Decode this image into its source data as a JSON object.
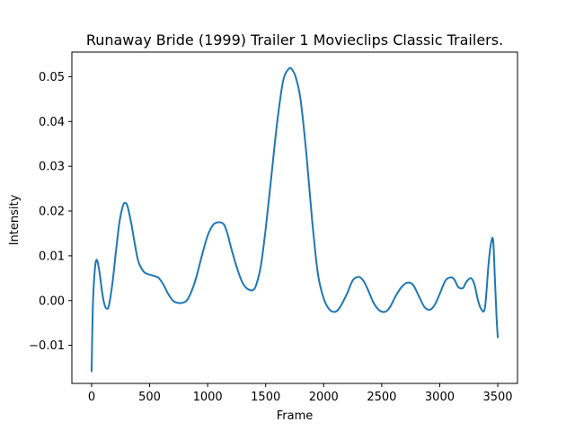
{
  "chart_data": {
    "type": "line",
    "title": "Runaway Bride (1999) Trailer 1  Movieclips Classic Trailers.",
    "xlabel": "Frame",
    "ylabel": "Intensity",
    "xlim": [
      -170,
      3670
    ],
    "ylim": [
      -0.0185,
      0.0555
    ],
    "x_ticks": [
      0,
      500,
      1000,
      1500,
      2000,
      2500,
      3000,
      3500
    ],
    "x_tick_labels": [
      "0",
      "500",
      "1000",
      "1500",
      "2000",
      "2500",
      "3000",
      "3500"
    ],
    "y_ticks": [
      -0.01,
      0.0,
      0.01,
      0.02,
      0.03,
      0.04,
      0.05
    ],
    "y_tick_labels": [
      "−0.01",
      "0.00",
      "0.01",
      "0.02",
      "0.03",
      "0.04",
      "0.05"
    ],
    "grid": false,
    "line_color": "#1f77b4",
    "series": [
      {
        "x": [
          0,
          10,
          20,
          35,
          50,
          70,
          90,
          110,
          130,
          150,
          180,
          210,
          240,
          270,
          290,
          310,
          340,
          370,
          400,
          430,
          460,
          500,
          540,
          580,
          620,
          660,
          700,
          740,
          780,
          820,
          860,
          900,
          950,
          1000,
          1050,
          1100,
          1140,
          1170,
          1200,
          1250,
          1300,
          1350,
          1400,
          1430,
          1460,
          1500,
          1550,
          1600,
          1650,
          1700,
          1730,
          1760,
          1800,
          1850,
          1900,
          1950,
          2000,
          2050,
          2100,
          2140,
          2200,
          2250,
          2300,
          2340,
          2380,
          2430,
          2480,
          2530,
          2570,
          2620,
          2670,
          2720,
          2770,
          2820,
          2870,
          2920,
          2960,
          3000,
          3050,
          3100,
          3130,
          3160,
          3200,
          3230,
          3270,
          3300,
          3330,
          3360,
          3390,
          3420,
          3440,
          3460,
          3475,
          3490,
          3500
        ],
        "y": [
          -0.0158,
          -0.002,
          0.004,
          0.0085,
          0.0088,
          0.006,
          0.002,
          -0.0008,
          -0.0018,
          -0.001,
          0.004,
          0.011,
          0.0175,
          0.0212,
          0.0218,
          0.021,
          0.0175,
          0.013,
          0.009,
          0.0072,
          0.0062,
          0.0058,
          0.0055,
          0.005,
          0.0035,
          0.0015,
          0.0,
          -0.0005,
          -0.0005,
          0.0,
          0.002,
          0.005,
          0.01,
          0.0145,
          0.017,
          0.0175,
          0.017,
          0.015,
          0.012,
          0.0075,
          0.004,
          0.0025,
          0.0025,
          0.0045,
          0.008,
          0.016,
          0.028,
          0.04,
          0.049,
          0.0518,
          0.0515,
          0.0498,
          0.045,
          0.033,
          0.018,
          0.006,
          0.0005,
          -0.002,
          -0.0025,
          -0.0015,
          0.0015,
          0.0045,
          0.0053,
          0.0045,
          0.0025,
          -0.0005,
          -0.0022,
          -0.0025,
          -0.0015,
          0.001,
          0.003,
          0.004,
          0.0035,
          0.001,
          -0.0015,
          -0.002,
          -0.0008,
          0.0015,
          0.0045,
          0.0052,
          0.0045,
          0.003,
          0.0028,
          0.0042,
          0.005,
          0.0035,
          0.0,
          -0.002,
          -0.0015,
          0.008,
          0.0125,
          0.0135,
          0.005,
          -0.004,
          -0.0082
        ]
      }
    ]
  }
}
